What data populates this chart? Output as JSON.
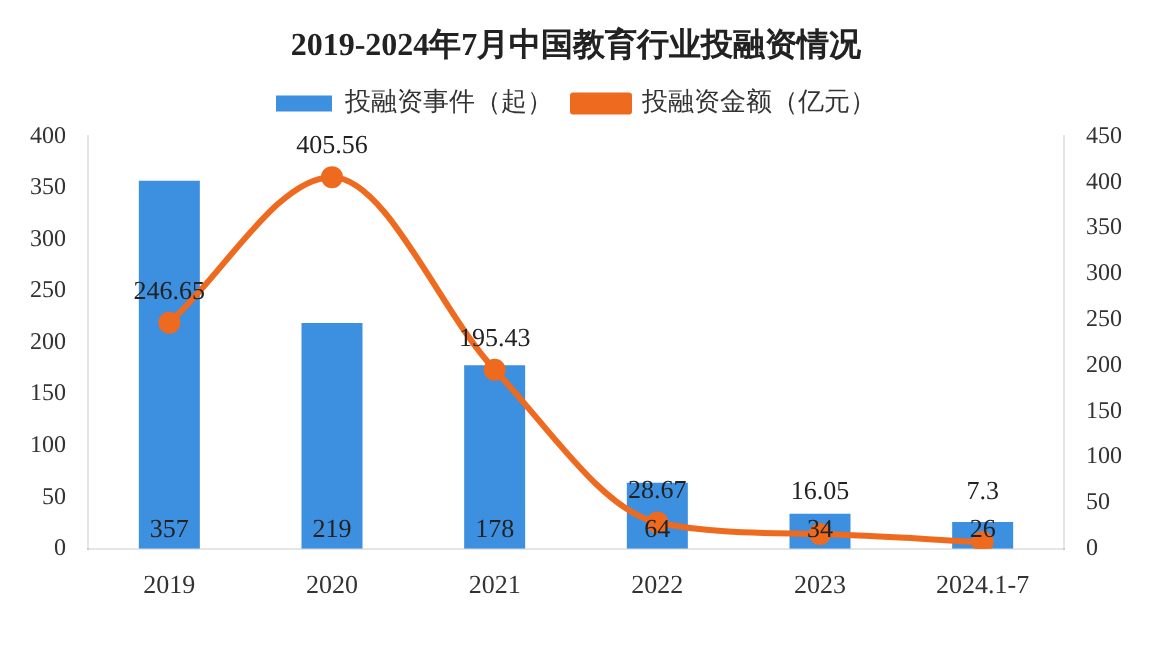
{
  "chart_data": {
    "type": "bar",
    "title": "2019-2024年7月中国教育行业投融资情况",
    "categories": [
      "2019",
      "2020",
      "2021",
      "2022",
      "2023",
      "2024.1-7"
    ],
    "series": [
      {
        "name": "投融资事件（起）",
        "color": "#3d8fe0",
        "values": [
          357,
          219,
          178,
          64,
          34,
          26
        ]
      },
      {
        "name": "投融资金额（亿元）",
        "type": "line",
        "axis": "y2",
        "color": "#ee6a1f",
        "marker": "circle",
        "values": [
          246.65,
          405.56,
          195.43,
          28.67,
          16.05,
          7.3
        ]
      }
    ],
    "ylim": [
      0,
      400
    ],
    "yticks": [
      0,
      50,
      100,
      150,
      200,
      250,
      300,
      350,
      400
    ],
    "y2lim": [
      0,
      450
    ],
    "y2ticks": [
      0,
      50,
      100,
      150,
      200,
      250,
      300,
      350,
      400,
      450
    ],
    "data_labels": true,
    "grid": false,
    "legend": "top"
  }
}
